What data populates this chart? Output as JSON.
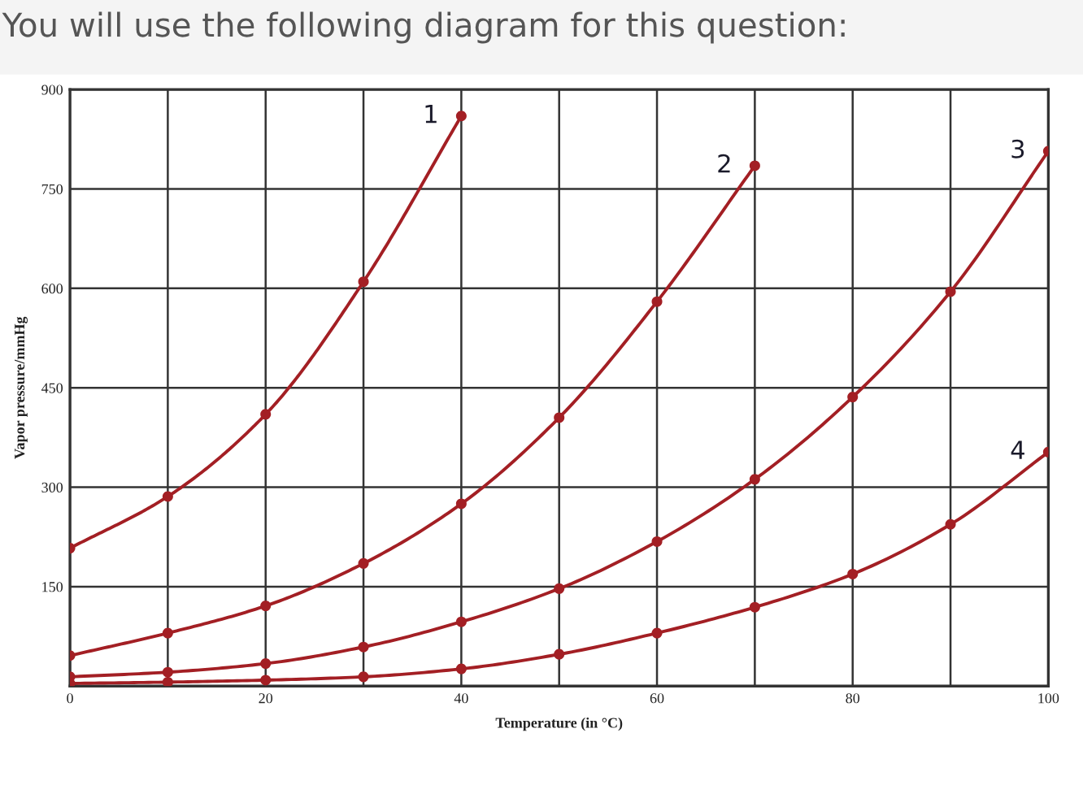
{
  "chart_data": {
    "type": "line",
    "title": "You will use the following diagram for this question:",
    "xlabel": "Temperature (in °C)",
    "ylabel": "Vapor pressure/mmHg",
    "series": [
      {
        "name": "1",
        "color": "#a31f24",
        "x": [
          0,
          10,
          20,
          30,
          40
        ],
        "values": [
          208,
          286,
          410,
          610,
          860
        ]
      },
      {
        "name": "2",
        "color": "#a31f24",
        "x": [
          0,
          10,
          20,
          30,
          40,
          50,
          60,
          70
        ],
        "values": [
          46,
          80,
          121,
          185,
          275,
          405,
          580,
          785
        ]
      },
      {
        "name": "3",
        "color": "#a31f24",
        "x": [
          0,
          10,
          20,
          30,
          40,
          50,
          60,
          70,
          80,
          90,
          100
        ],
        "values": [
          14,
          21,
          34,
          59,
          97,
          147,
          218,
          312,
          436,
          595,
          807
        ]
      },
      {
        "name": "4",
        "color": "#a31f24",
        "x": [
          0,
          10,
          20,
          30,
          40,
          50,
          60,
          70,
          80,
          90,
          100
        ],
        "values": [
          4,
          6,
          9,
          14,
          26,
          48,
          80,
          119,
          169,
          244,
          353
        ]
      }
    ],
    "xlim": [
      0,
      100
    ],
    "ylim": [
      0,
      900
    ],
    "xticks": [
      0,
      {
        "value": 10,
        "label": null
      },
      20,
      {
        "value": 30,
        "label": null
      },
      40,
      {
        "value": 50,
        "label": null
      },
      60,
      {
        "value": 70,
        "label": null
      },
      80,
      {
        "value": 90,
        "label": null
      },
      100
    ],
    "yticks": [
      {
        "value": 0,
        "label": null
      },
      150,
      300,
      450,
      600,
      750,
      900
    ],
    "grid": true,
    "marker": "circle",
    "line_style": "solid"
  }
}
